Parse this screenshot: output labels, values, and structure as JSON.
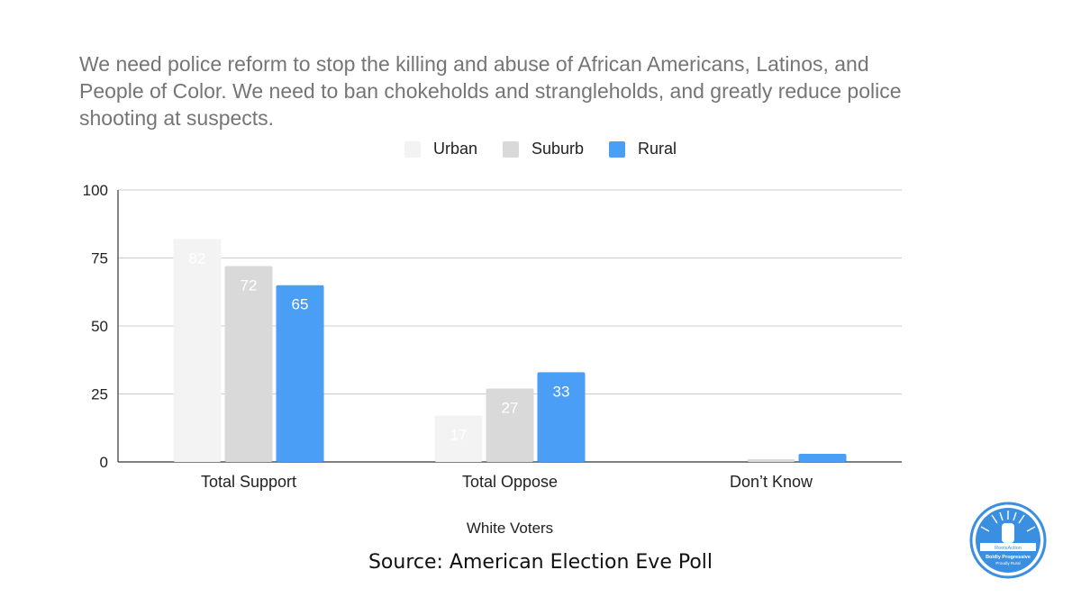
{
  "chart_data": {
    "type": "bar",
    "title": "We need police reform to stop the killing and abuse of African Americans, Latinos, and People of Color. We need to ban chokeholds and strangleholds, and greatly reduce police shooting at suspects.",
    "categories": [
      "Total Support",
      "Total Oppose",
      "Don’t Know"
    ],
    "series": [
      {
        "name": "Urban",
        "color": "#f3f3f3",
        "values": [
          82,
          17,
          0
        ],
        "labels": [
          "82",
          "17",
          ""
        ]
      },
      {
        "name": "Suburb",
        "color": "#d9d9d9",
        "values": [
          72,
          27,
          1
        ],
        "labels": [
          "72",
          "27",
          ""
        ]
      },
      {
        "name": "Rural",
        "color": "#4a9ef5",
        "values": [
          65,
          33,
          3
        ],
        "labels": [
          "65",
          "33",
          ""
        ]
      }
    ],
    "xlabel": "White Voters",
    "ylabel": "",
    "ylim": [
      0,
      100
    ],
    "yticks": [
      "0",
      "25",
      "50",
      "75",
      "100"
    ],
    "grid": true,
    "legend_position": "top-center"
  },
  "source": "Source: American Election Eve Poll",
  "logo": {
    "icon": "fist-seal-icon",
    "text_top": "RootsAction",
    "text_bottom": "Boldly Progressive",
    "text_sub": "Proudly Rural",
    "color": "#3b8fe0"
  }
}
